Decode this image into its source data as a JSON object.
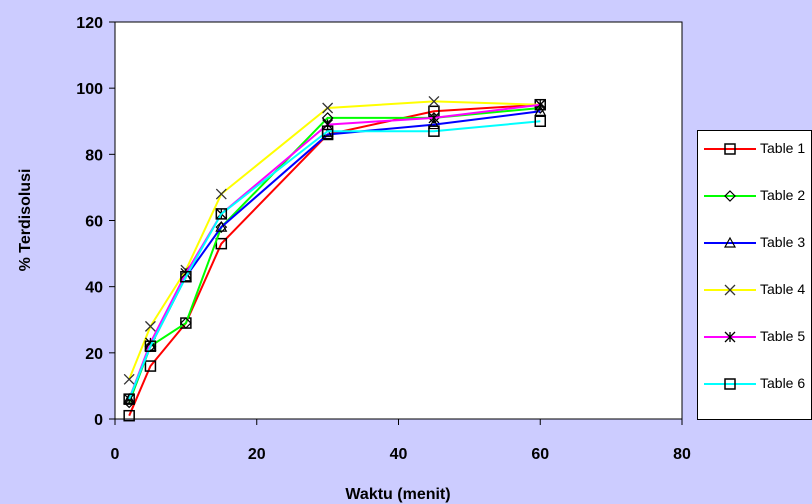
{
  "chart_data": {
    "type": "line",
    "title": "",
    "xlabel": "Waktu (menit)",
    "ylabel": "% Terdisolusi",
    "xlim": [
      0,
      80
    ],
    "ylim": [
      0,
      120
    ],
    "x_ticks": [
      0,
      20,
      40,
      60,
      80
    ],
    "y_ticks": [
      0,
      20,
      40,
      60,
      80,
      100,
      120
    ],
    "grid": false,
    "legend_position": "right",
    "x": [
      2,
      5,
      10,
      15,
      30,
      45,
      60
    ],
    "series": [
      {
        "name": "Table 1",
        "color": "#ff0000",
        "marker": "square",
        "values": [
          1,
          16,
          29,
          53,
          86,
          93,
          95
        ]
      },
      {
        "name": "Table 2",
        "color": "#00ff00",
        "marker": "diamond",
        "values": [
          5,
          22,
          29,
          58,
          91,
          91,
          94
        ]
      },
      {
        "name": "Table 3",
        "color": "#0000ff",
        "marker": "triangle",
        "values": [
          6,
          22,
          43,
          58,
          86,
          89,
          93
        ]
      },
      {
        "name": "Table 4",
        "color": "#ffff00",
        "marker": "x",
        "values": [
          12,
          28,
          45,
          68,
          94,
          96,
          95
        ]
      },
      {
        "name": "Table 5",
        "color": "#ff00ff",
        "marker": "asterisk",
        "values": [
          6,
          23,
          44,
          62,
          89,
          91,
          95
        ]
      },
      {
        "name": "Table 6",
        "color": "#00ffff",
        "marker": "square",
        "values": [
          6,
          22,
          43,
          62,
          87,
          87,
          90
        ]
      }
    ]
  }
}
